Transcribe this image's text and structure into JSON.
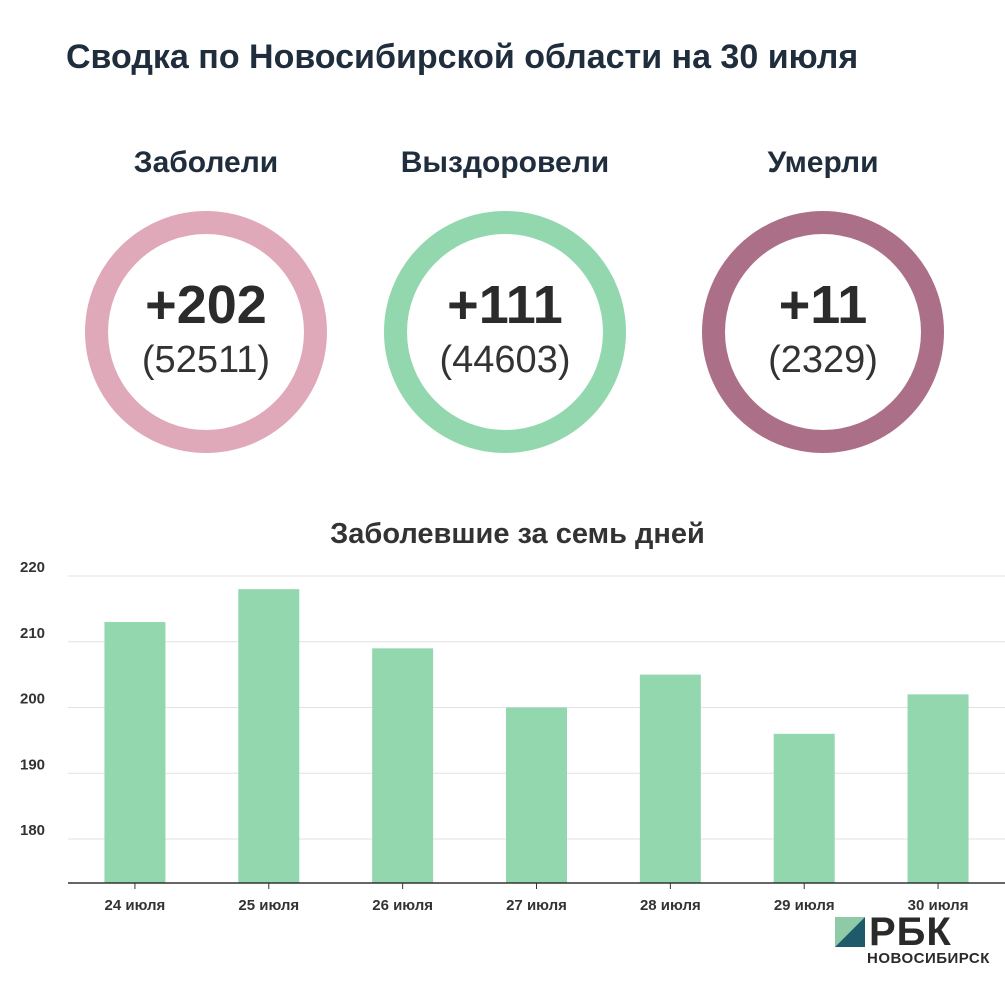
{
  "title": "Сводка по Новосибирской области на 30 июля",
  "stats": [
    {
      "label": "Заболели",
      "delta": "+202",
      "total": "(52511)",
      "color": "#dfa9ba"
    },
    {
      "label": "Выздоровели",
      "delta": "+111",
      "total": "(44603)",
      "color": "#93d7ae"
    },
    {
      "label": "Умерли",
      "delta": "+11",
      "total": "(2329)",
      "color": "#ab7087"
    }
  ],
  "chart_data": {
    "type": "bar",
    "title": "Заболевшие за семь дней",
    "categories": [
      "24 июля",
      "25 июля",
      "26 июля",
      "27 июля",
      "28 июля",
      "29 июля",
      "30 июля"
    ],
    "values": [
      213,
      218,
      209,
      200,
      205,
      196,
      202
    ],
    "yticks": [
      180,
      190,
      200,
      210,
      220
    ],
    "ylim": [
      175,
      222
    ],
    "grid": true,
    "bar_color": "#93d7ae"
  },
  "logo": {
    "name": "РБК",
    "sub": "НОВОСИБИРСК"
  }
}
